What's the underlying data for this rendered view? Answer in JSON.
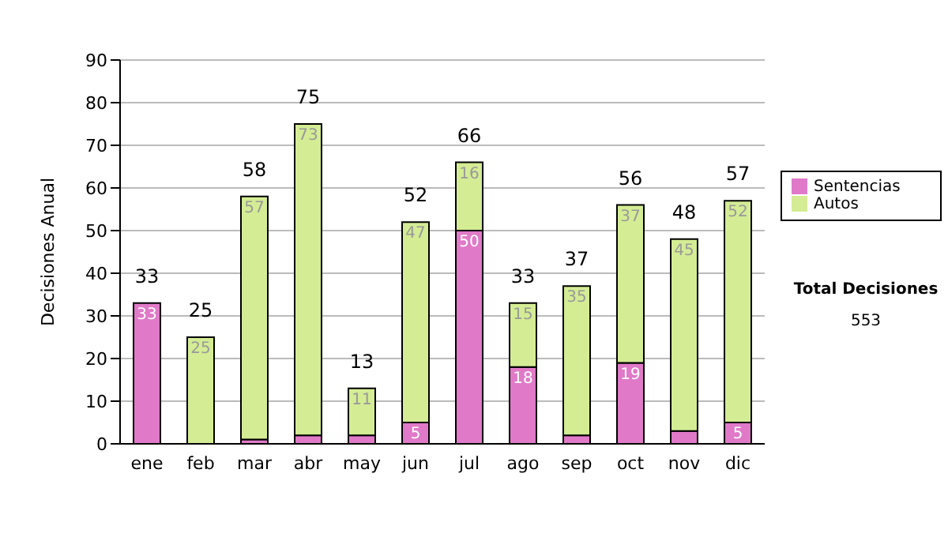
{
  "chart_data": {
    "type": "bar",
    "stacked": true,
    "ylabel": "Decisiones Anual",
    "categories": [
      "ene",
      "feb",
      "mar",
      "abr",
      "may",
      "jun",
      "jul",
      "ago",
      "sep",
      "oct",
      "nov",
      "dic"
    ],
    "series": [
      {
        "name": "Sentencias",
        "color": "#e07ac8",
        "values": [
          33,
          0,
          1,
          2,
          2,
          5,
          50,
          18,
          2,
          19,
          3,
          5
        ],
        "value_labels": [
          "33",
          null,
          null,
          null,
          null,
          "5",
          "50",
          "18",
          null,
          "19",
          null,
          "5"
        ]
      },
      {
        "name": "Autos",
        "color": "#d4ec94",
        "values": [
          0,
          25,
          57,
          73,
          11,
          47,
          16,
          15,
          35,
          37,
          45,
          52
        ],
        "value_labels": [
          null,
          "25",
          "57",
          "73",
          "11",
          "47",
          "16",
          "15",
          "35",
          "37",
          "45",
          "52"
        ]
      }
    ],
    "totals": [
      "33",
      "25",
      "58",
      "75",
      "13",
      "52",
      "66",
      "33",
      "37",
      "56",
      "48",
      "57"
    ],
    "ylim": [
      0,
      90
    ],
    "yticks": [
      0,
      10,
      20,
      30,
      40,
      50,
      60,
      70,
      80,
      90
    ],
    "grid": "y",
    "legend": "right",
    "annotations": [
      "Total Decisiones",
      "553"
    ]
  }
}
